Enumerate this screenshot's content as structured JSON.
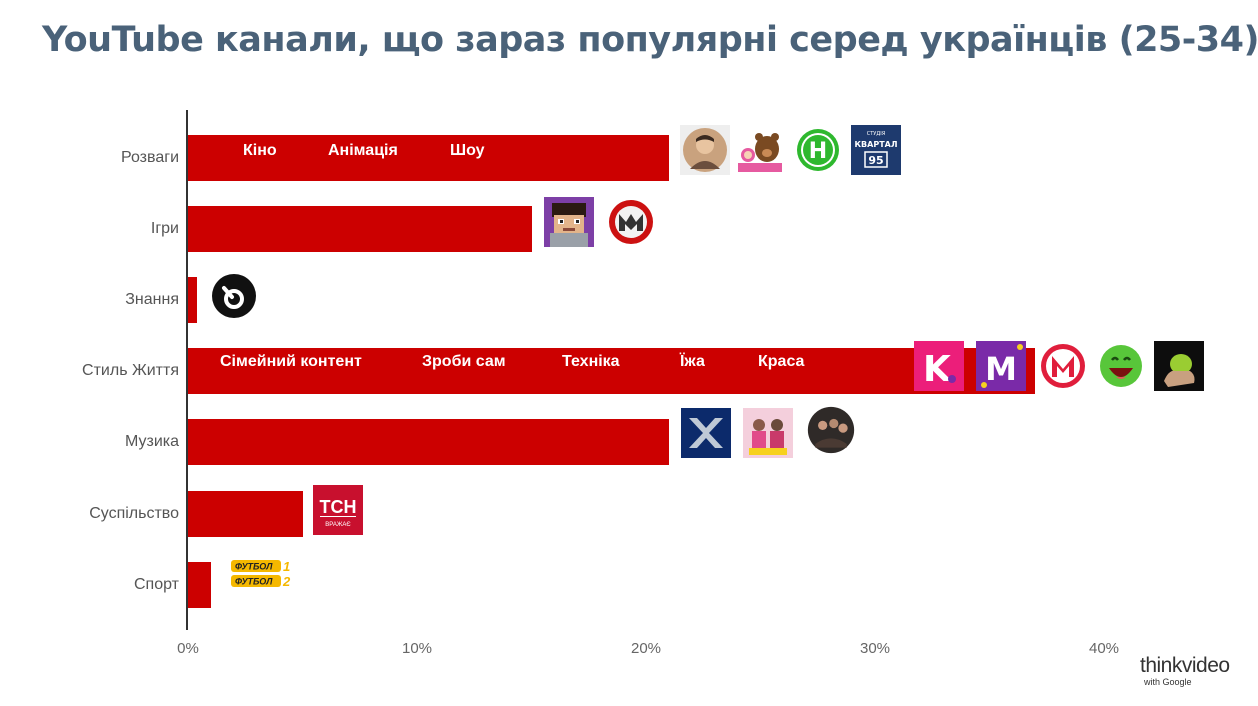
{
  "title": "YouTube канали, що зараз популярні серед українців (25-34)",
  "chart_data": {
    "type": "bar",
    "orientation": "horizontal",
    "categories": [
      "Розваги",
      "Ігри",
      "Знання",
      "Стиль Життя",
      "Музика",
      "Суспільство",
      "Спорт"
    ],
    "values": [
      21,
      15,
      0.4,
      37,
      21,
      5,
      1
    ],
    "xlim": [
      0,
      40
    ],
    "x_ticks": [
      "0%",
      "10%",
      "20%",
      "30%",
      "40%"
    ],
    "x_tick_values": [
      0,
      10,
      20,
      30,
      40
    ],
    "bar_color": "#cc0000",
    "grid": false,
    "subcategories": {
      "Розваги": [
        "Кіно",
        "Анімація",
        "Шоу"
      ],
      "Стиль Життя": [
        "Сімейний контент",
        "Зроби сам",
        "Техніка",
        "Їжа",
        "Краса"
      ]
    }
  },
  "icons": {
    "Розваги": [
      "person-avatar-icon",
      "masha-and-bear-icon",
      "novyi-channel-logo-icon",
      "kvartal-95-logo-icon"
    ],
    "Ігри": [
      "minecraft-character-icon",
      "gaming-logo-icon"
    ],
    "Знання": [
      "knowledge-channel-logo-icon"
    ],
    "Стиль Життя": [
      "k-logo-icon",
      "m-logo-icon",
      "m-circle-logo-icon",
      "laughing-smiley-icon",
      "green-hand-icon"
    ],
    "Музика": [
      "x-factor-logo-icon",
      "band-photo-icon",
      "band-circle-photo-icon"
    ],
    "Суспільство": [
      "tsn-logo-icon"
    ],
    "Спорт": [
      "futbol-1-2-logo-icon"
    ]
  },
  "logo_text": {
    "tsn": "ТСН",
    "tsn_sub": "ВРАЖАЄ",
    "kvartal": "КВАРТАЛ",
    "kvartal_num": "95",
    "kvartal_top": "СТУДІЯ",
    "futbol1": "ФУТБОЛ",
    "futbol1_num": "1",
    "futbol2": "ФУТБОЛ",
    "futbol2_num": "2",
    "novyi": "Н",
    "k": "K",
    "m": "M"
  },
  "brand": {
    "main": "thinkvideo",
    "sub": "with Google"
  }
}
